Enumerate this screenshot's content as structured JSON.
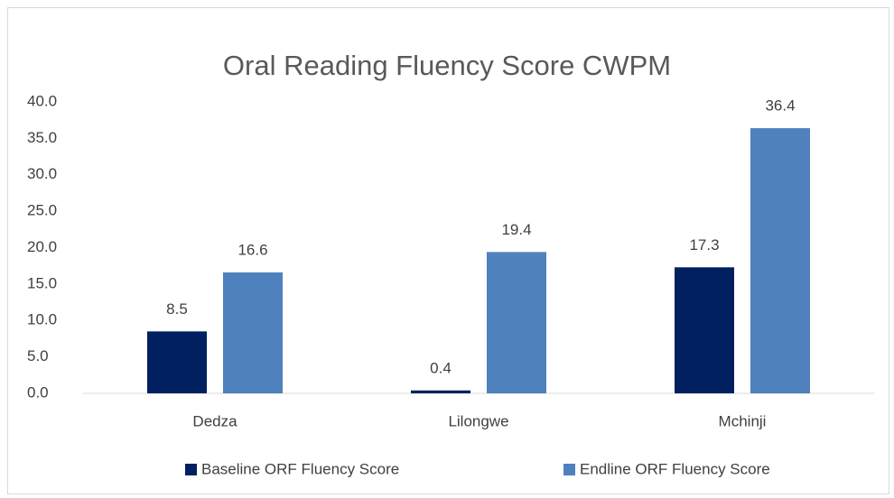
{
  "chart_data": {
    "type": "bar",
    "title": "Oral Reading Fluency Score CWPM",
    "categories": [
      "Dedza",
      "Lilongwe",
      "Mchinji"
    ],
    "series": [
      {
        "name": "Baseline ORF Fluency Score",
        "color": "#002060",
        "values": [
          8.5,
          0.4,
          17.3
        ]
      },
      {
        "name": "Endline ORF Fluency Score",
        "color": "#4f81bd",
        "values": [
          16.6,
          19.4,
          36.4
        ]
      }
    ],
    "ylim": [
      0,
      40
    ],
    "yticks": [
      {
        "value": 0,
        "label": "0.0"
      },
      {
        "value": 5,
        "label": "5.0"
      },
      {
        "value": 10,
        "label": "10.0"
      },
      {
        "value": 15,
        "label": "15.0"
      },
      {
        "value": 20,
        "label": "20.0"
      },
      {
        "value": 25,
        "label": "25.0"
      },
      {
        "value": 30,
        "label": "30.0"
      },
      {
        "value": 35,
        "label": "35.0"
      },
      {
        "value": 40,
        "label": "40.0"
      }
    ],
    "grid": false,
    "legend": "bottom"
  }
}
